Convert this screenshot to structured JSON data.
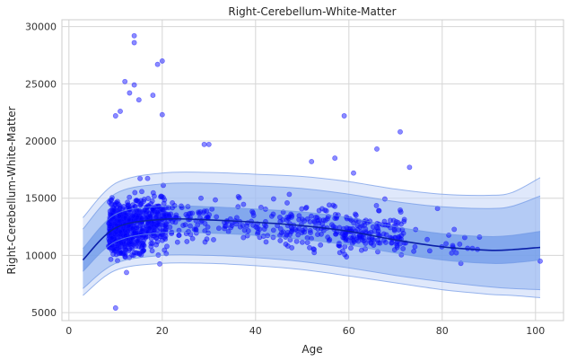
{
  "chart_data": {
    "type": "scatter",
    "title": "Right-Cerebellum-White-Matter",
    "xlabel": "Age",
    "ylabel": "Right-Cerebellum-White-Matter",
    "xlim": [
      -1.5,
      106
    ],
    "ylim": [
      4300,
      30600
    ],
    "xticks": [
      "0",
      "20",
      "40",
      "60",
      "80",
      "100"
    ],
    "yticks": [
      "5000",
      "10000",
      "15000",
      "20000",
      "25000",
      "30000"
    ],
    "grid": true,
    "legend": "none",
    "colors": {
      "points": "#0000ff",
      "mean_line": "#0a1fa8",
      "band_inner": "#5b8ce6",
      "band_middle": "#8fb2f0",
      "band_outer": "#c9d9f8",
      "grid": "#d6d6d6"
    },
    "centile_curves": {
      "age": [
        3,
        10,
        20,
        30,
        40,
        50,
        60,
        70,
        80,
        90,
        95,
        101
      ],
      "p50": [
        9600,
        12400,
        13150,
        13100,
        12900,
        12600,
        12100,
        11350,
        10750,
        10450,
        10500,
        10700
      ],
      "p25": [
        8600,
        11200,
        12000,
        11950,
        11750,
        11400,
        10900,
        10200,
        9600,
        9300,
        9350,
        9600
      ],
      "p75": [
        10600,
        13600,
        14300,
        14250,
        14050,
        13800,
        13300,
        12500,
        11900,
        11650,
        11750,
        12100
      ],
      "p05": [
        7100,
        9300,
        10000,
        10000,
        9800,
        9450,
        8900,
        8250,
        7700,
        7250,
        7100,
        7000
      ],
      "p95": [
        12300,
        15400,
        16250,
        16300,
        16100,
        15850,
        15350,
        14700,
        14250,
        14100,
        14300,
        15200
      ],
      "p01": [
        6500,
        8700,
        9300,
        9300,
        9100,
        8750,
        8200,
        7600,
        7000,
        6600,
        6500,
        6300
      ],
      "p99": [
        13300,
        16300,
        17200,
        17250,
        17100,
        16900,
        16450,
        15800,
        15350,
        15250,
        15500,
        16800
      ]
    },
    "point_clusters": [
      {
        "age": [
          8.5,
          12
        ],
        "mean": 12300,
        "sd": 1900,
        "count": 260
      },
      {
        "age": [
          12,
          16
        ],
        "mean": 12600,
        "sd": 2200,
        "count": 220
      },
      {
        "age": [
          16,
          21
        ],
        "mean": 12900,
        "sd": 2000,
        "count": 170
      },
      {
        "age": [
          21,
          30
        ],
        "mean": 13000,
        "sd": 1500,
        "count": 70
      },
      {
        "age": [
          30,
          45
        ],
        "mean": 12800,
        "sd": 1500,
        "count": 60
      },
      {
        "age": [
          45,
          58
        ],
        "mean": 12500,
        "sd": 1600,
        "count": 110
      },
      {
        "age": [
          58,
          72
        ],
        "mean": 11800,
        "sd": 1600,
        "count": 150
      },
      {
        "age": [
          72,
          90
        ],
        "mean": 10900,
        "sd": 1400,
        "count": 20
      }
    ],
    "outliers": [
      {
        "x": 14,
        "y": 29200
      },
      {
        "x": 14,
        "y": 28600
      },
      {
        "x": 20,
        "y": 27000
      },
      {
        "x": 12,
        "y": 25200
      },
      {
        "x": 14,
        "y": 24900
      },
      {
        "x": 19,
        "y": 26700
      },
      {
        "x": 13,
        "y": 24200
      },
      {
        "x": 18,
        "y": 24000
      },
      {
        "x": 10,
        "y": 22200
      },
      {
        "x": 11,
        "y": 22600
      },
      {
        "x": 15,
        "y": 23600
      },
      {
        "x": 20,
        "y": 22300
      },
      {
        "x": 59,
        "y": 22200
      },
      {
        "x": 71,
        "y": 20800
      },
      {
        "x": 29,
        "y": 19700
      },
      {
        "x": 30,
        "y": 19700
      },
      {
        "x": 66,
        "y": 19300
      },
      {
        "x": 10,
        "y": 5400
      },
      {
        "x": 101,
        "y": 9500
      },
      {
        "x": 88,
        "y": 11600
      },
      {
        "x": 84,
        "y": 9300
      },
      {
        "x": 52,
        "y": 18200
      },
      {
        "x": 57,
        "y": 18500
      },
      {
        "x": 61,
        "y": 17200
      },
      {
        "x": 73,
        "y": 17700
      },
      {
        "x": 79,
        "y": 14100
      }
    ]
  }
}
